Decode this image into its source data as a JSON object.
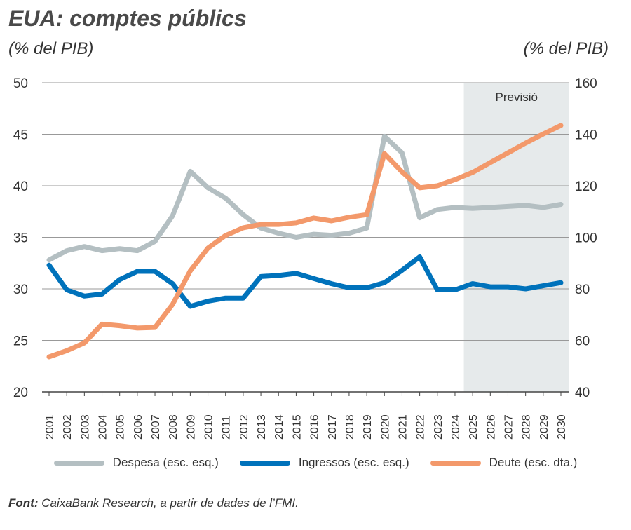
{
  "title": "EUA: comptes públics",
  "source_label": "Font:",
  "source_text": " CaixaBank Research, a partir de dades de l’FMI.",
  "chart_data": {
    "type": "line",
    "title": "EUA: comptes públics",
    "ylabel_left": "(% del PIB)",
    "ylabel_right": "(% del PIB)",
    "ylim_left": [
      20,
      50
    ],
    "ylim_right": [
      40,
      160
    ],
    "yticks_left": [
      20,
      25,
      30,
      35,
      40,
      45,
      50
    ],
    "yticks_right": [
      40,
      60,
      80,
      100,
      120,
      140,
      160
    ],
    "grid": true,
    "legend": "bottom",
    "forecast_label": "Previsió",
    "forecast_start": 2025,
    "forecast_color": "#e6eaeb",
    "x": [
      2001,
      2002,
      2003,
      2004,
      2005,
      2006,
      2007,
      2008,
      2009,
      2010,
      2011,
      2012,
      2013,
      2014,
      2015,
      2016,
      2017,
      2018,
      2019,
      2020,
      2021,
      2022,
      2023,
      2024,
      2025,
      2026,
      2027,
      2028,
      2029,
      2030
    ],
    "series": [
      {
        "name": "Despesa (esc. esq.)",
        "axis": "left",
        "color": "#b4bfc2",
        "values": [
          32.8,
          33.7,
          34.1,
          33.7,
          33.9,
          33.7,
          34.6,
          37.1,
          41.4,
          39.8,
          38.8,
          37.2,
          35.9,
          35.4,
          35.0,
          35.3,
          35.2,
          35.4,
          35.9,
          44.8,
          43.2,
          36.9,
          37.7,
          37.9,
          37.8,
          37.9,
          38.0,
          38.1,
          37.9,
          38.2
        ]
      },
      {
        "name": "Ingressos (esc. esq.)",
        "axis": "left",
        "color": "#0072bb",
        "values": [
          32.3,
          29.9,
          29.3,
          29.5,
          30.9,
          31.7,
          31.7,
          30.5,
          28.3,
          28.8,
          29.1,
          29.1,
          31.2,
          31.3,
          31.5,
          31.0,
          30.5,
          30.1,
          30.1,
          30.6,
          31.8,
          33.1,
          29.9,
          29.9,
          30.5,
          30.2,
          30.2,
          30.0,
          30.3,
          30.6
        ]
      },
      {
        "name": "Deute (esc. dta.)",
        "axis": "right",
        "color": "#f3996b",
        "values": [
          53.6,
          56,
          59,
          66.3,
          65.7,
          64.8,
          65,
          74,
          87,
          95.8,
          100.7,
          103.7,
          105,
          105,
          105.6,
          107.5,
          106.4,
          107.8,
          108.8,
          132.5,
          125.4,
          119.2,
          120,
          122.4,
          125.2,
          129,
          132.8,
          136.6,
          140.1,
          143.4
        ]
      }
    ]
  }
}
